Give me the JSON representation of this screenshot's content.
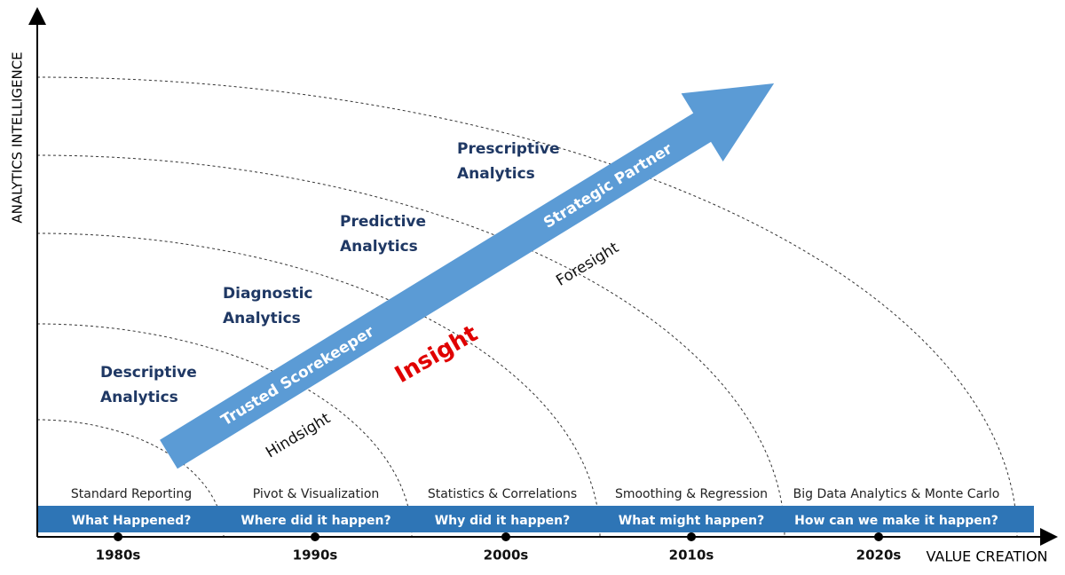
{
  "axes": {
    "y_label": "ANALYTICS INTELLIGENCE",
    "x_label": "VALUE CREATION"
  },
  "stages": [
    {
      "line1": "Descriptive",
      "line2": "Analytics"
    },
    {
      "line1": "Diagnostic",
      "line2": "Analytics"
    },
    {
      "line1": "Predictive",
      "line2": "Analytics"
    },
    {
      "line1": "Prescriptive",
      "line2": "Analytics"
    }
  ],
  "arrow": {
    "start_label": "Trusted Scorekeeper",
    "end_label": "Strategic Partner"
  },
  "center_label": "Insight",
  "hindsight": "Hindsight",
  "foresight": "Foresight",
  "eras": [
    {
      "technique": "Standard Reporting",
      "question": "What Happened?",
      "decade": "1980s"
    },
    {
      "technique": "Pivot & Visualization",
      "question": "Where did it happen?",
      "decade": "1990s"
    },
    {
      "technique": "Statistics & Correlations",
      "question": "Why did it happen?",
      "decade": "2000s"
    },
    {
      "technique": "Smoothing & Regression",
      "question": "What might happen?",
      "decade": "2010s"
    },
    {
      "technique": "Big Data Analytics & Monte Carlo",
      "question": "How can we make it happen?",
      "decade": "2020s"
    }
  ]
}
